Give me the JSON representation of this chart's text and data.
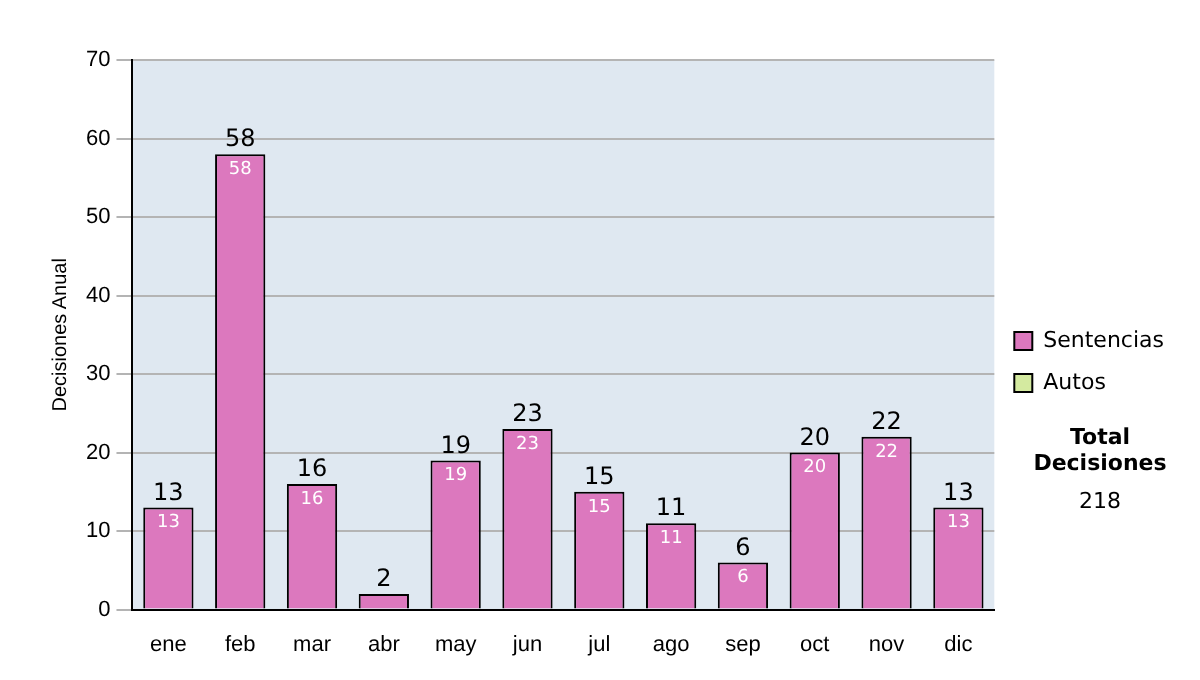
{
  "chart_data": {
    "type": "bar",
    "ylabel": "Decisiones Anual",
    "categories": [
      "ene",
      "feb",
      "mar",
      "abr",
      "may",
      "jun",
      "jul",
      "ago",
      "sep",
      "oct",
      "nov",
      "dic"
    ],
    "series": [
      {
        "name": "Sentencias",
        "color": "#dc78be",
        "values": [
          13,
          58,
          16,
          2,
          19,
          23,
          15,
          11,
          6,
          20,
          22,
          13
        ],
        "value_labels": [
          "13",
          "58",
          "16",
          null,
          "19",
          "23",
          "15",
          "11",
          "6",
          "20",
          "22",
          "13"
        ]
      },
      {
        "name": "Autos",
        "color": "#d4eaa0",
        "values": [
          0,
          0,
          0,
          0,
          0,
          0,
          0,
          0,
          0,
          0,
          0,
          0
        ]
      }
    ],
    "stacked": true,
    "totals": [
      "13",
      "58",
      "16",
      "2",
      "19",
      "23",
      "15",
      "11",
      "6",
      "20",
      "22",
      "13"
    ],
    "ylim": [
      0,
      70
    ],
    "yticks": [
      0,
      10,
      20,
      30,
      40,
      50,
      60,
      70
    ],
    "grid": "y",
    "legend": "right",
    "annotations": [
      "Total Decisiones",
      "218"
    ]
  }
}
